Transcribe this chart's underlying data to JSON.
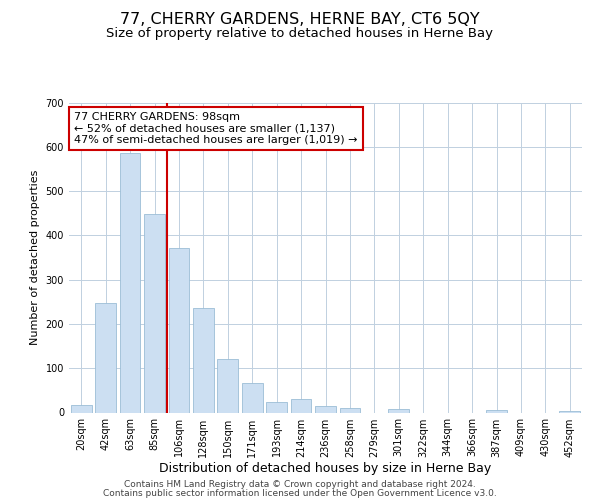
{
  "title": "77, CHERRY GARDENS, HERNE BAY, CT6 5QY",
  "subtitle": "Size of property relative to detached houses in Herne Bay",
  "xlabel": "Distribution of detached houses by size in Herne Bay",
  "ylabel": "Number of detached properties",
  "bar_labels": [
    "20sqm",
    "42sqm",
    "63sqm",
    "85sqm",
    "106sqm",
    "128sqm",
    "150sqm",
    "171sqm",
    "193sqm",
    "214sqm",
    "236sqm",
    "258sqm",
    "279sqm",
    "301sqm",
    "322sqm",
    "344sqm",
    "366sqm",
    "387sqm",
    "409sqm",
    "430sqm",
    "452sqm"
  ],
  "bar_values": [
    17,
    248,
    585,
    449,
    372,
    237,
    120,
    67,
    24,
    30,
    15,
    11,
    0,
    9,
    0,
    0,
    0,
    5,
    0,
    0,
    3
  ],
  "bar_color": "#ccdff2",
  "bar_edge_color": "#9bbdd6",
  "vline_x_idx": 3.5,
  "vline_color": "#cc0000",
  "annotation_text": "77 CHERRY GARDENS: 98sqm\n← 52% of detached houses are smaller (1,137)\n47% of semi-detached houses are larger (1,019) →",
  "annotation_box_color": "#ffffff",
  "annotation_box_edge": "#cc0000",
  "ylim": [
    0,
    700
  ],
  "yticks": [
    0,
    100,
    200,
    300,
    400,
    500,
    600,
    700
  ],
  "footer_line1": "Contains HM Land Registry data © Crown copyright and database right 2024.",
  "footer_line2": "Contains public sector information licensed under the Open Government Licence v3.0.",
  "bg_color": "#ffffff",
  "grid_color": "#c0d0e0",
  "title_fontsize": 11.5,
  "subtitle_fontsize": 9.5,
  "xlabel_fontsize": 9,
  "ylabel_fontsize": 8,
  "tick_fontsize": 7,
  "annotation_fontsize": 8,
  "footer_fontsize": 6.5
}
